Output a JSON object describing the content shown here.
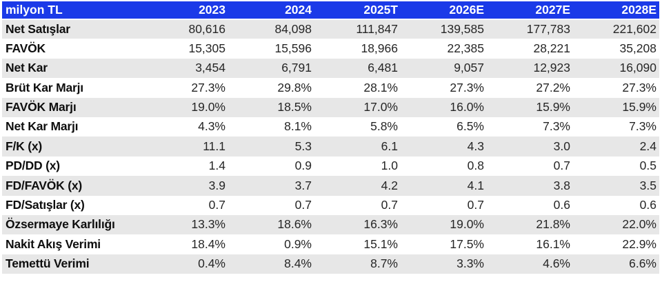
{
  "colors": {
    "header_bg": "#1b3ae8",
    "header_text": "#ffffff",
    "stripe_row_bg": "#e7e7e7",
    "plain_row_bg": "#ffffff",
    "label_text": "#0e0e0e",
    "value_text": "#262626"
  },
  "chart_data": {
    "type": "table",
    "corner_label": "milyon TL",
    "columns": [
      "2023",
      "2024",
      "2025T",
      "2026E",
      "2027E",
      "2028E"
    ],
    "rows": [
      {
        "label": "Net Satışlar",
        "values": [
          "80,616",
          "84,098",
          "111,847",
          "139,585",
          "177,783",
          "221,602"
        ]
      },
      {
        "label": "FAVÖK",
        "values": [
          "15,305",
          "15,596",
          "18,966",
          "22,385",
          "28,221",
          "35,208"
        ]
      },
      {
        "label": "Net Kar",
        "values": [
          "3,454",
          "6,791",
          "6,481",
          "9,057",
          "12,923",
          "16,090"
        ]
      },
      {
        "label": "Brüt Kar Marjı",
        "values": [
          "27.3%",
          "29.8%",
          "28.1%",
          "27.3%",
          "27.2%",
          "27.3%"
        ]
      },
      {
        "label": "FAVÖK Marjı",
        "values": [
          "19.0%",
          "18.5%",
          "17.0%",
          "16.0%",
          "15.9%",
          "15.9%"
        ]
      },
      {
        "label": "Net Kar Marjı",
        "values": [
          "4.3%",
          "8.1%",
          "5.8%",
          "6.5%",
          "7.3%",
          "7.3%"
        ]
      },
      {
        "label": "F/K (x)",
        "values": [
          "11.1",
          "5.3",
          "6.1",
          "4.3",
          "3.0",
          "2.4"
        ]
      },
      {
        "label": "PD/DD (x)",
        "values": [
          "1.4",
          "0.9",
          "1.0",
          "0.8",
          "0.7",
          "0.5"
        ]
      },
      {
        "label": "FD/FAVÖK (x)",
        "values": [
          "3.9",
          "3.7",
          "4.2",
          "4.1",
          "3.8",
          "3.5"
        ]
      },
      {
        "label": "FD/Satışlar (x)",
        "values": [
          "0.7",
          "0.7",
          "0.7",
          "0.7",
          "0.6",
          "0.6"
        ]
      },
      {
        "label": "Özsermaye Karlılığı",
        "values": [
          "13.3%",
          "18.6%",
          "16.3%",
          "19.0%",
          "21.8%",
          "22.0%"
        ]
      },
      {
        "label": "Nakit Akış Verimi",
        "values": [
          "18.4%",
          "0.9%",
          "15.1%",
          "17.5%",
          "16.1%",
          "22.9%"
        ]
      },
      {
        "label": "Temettü Verimi",
        "values": [
          "0.4%",
          "8.4%",
          "8.7%",
          "3.3%",
          "4.6%",
          "6.6%"
        ]
      }
    ]
  }
}
